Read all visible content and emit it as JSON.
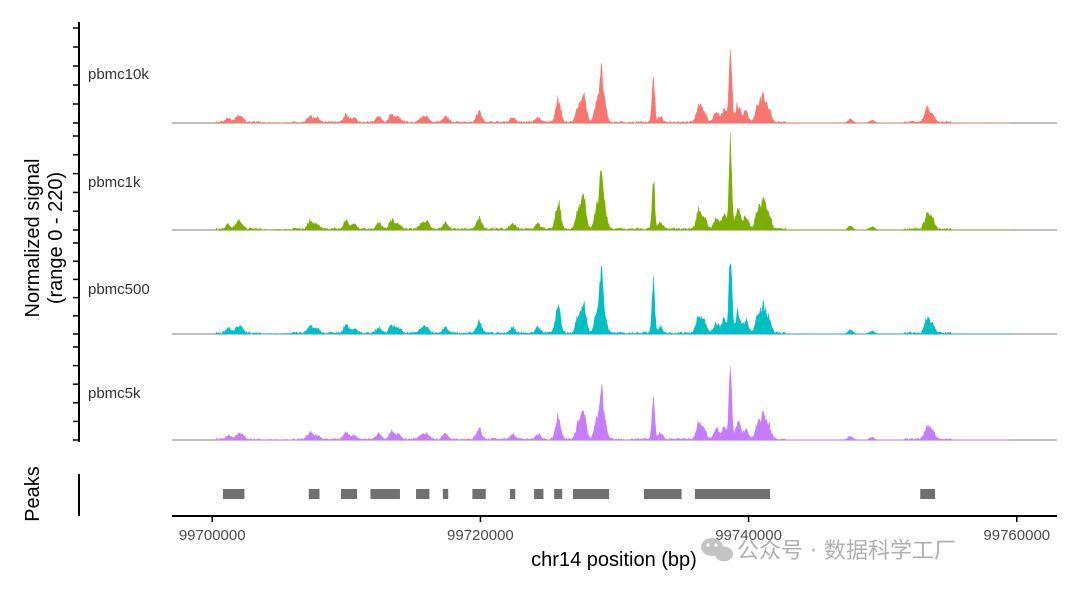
{
  "chart_data": {
    "type": "area",
    "ylabel_line1": "Normalized signal",
    "ylabel_line2": "(range 0 - 220)",
    "xlabel": "chr14 position (bp)",
    "ylim": [
      0,
      220
    ],
    "xlim": [
      99697000,
      99763000
    ],
    "x_ticks": [
      99700000,
      99720000,
      99740000,
      99760000
    ],
    "x_tick_labels": [
      "99700000",
      "99720000",
      "99740000",
      "99760000"
    ],
    "peaks_label": "Peaks",
    "tracks": [
      {
        "name": "pbmc10k",
        "color": "#F8766D",
        "scale": 1.0
      },
      {
        "name": "pbmc1k",
        "color": "#7CAE00",
        "scale": 1.15
      },
      {
        "name": "pbmc500",
        "color": "#00BFC4",
        "scale": 1.12
      },
      {
        "name": "pbmc5k",
        "color": "#C77CFF",
        "scale": 0.98
      }
    ],
    "peak_regions": [
      [
        99700800,
        99702400
      ],
      [
        99707200,
        99708000
      ],
      [
        99709600,
        99710800
      ],
      [
        99711800,
        99714000
      ],
      [
        99715200,
        99716200
      ],
      [
        99717200,
        99717600
      ],
      [
        99719400,
        99720400
      ],
      [
        99722200,
        99722600
      ],
      [
        99724000,
        99724700
      ],
      [
        99725500,
        99726100
      ],
      [
        99726900,
        99729600
      ],
      [
        99732200,
        99735000
      ],
      [
        99736000,
        99741600
      ],
      [
        99752800,
        99753900
      ]
    ],
    "signal_peaks": [
      {
        "x": 99701200,
        "y": 9
      },
      {
        "x": 99701900,
        "y": 12
      },
      {
        "x": 99702200,
        "y": 8
      },
      {
        "x": 99707300,
        "y": 15
      },
      {
        "x": 99707800,
        "y": 10
      },
      {
        "x": 99710000,
        "y": 17
      },
      {
        "x": 99710600,
        "y": 9
      },
      {
        "x": 99712400,
        "y": 12
      },
      {
        "x": 99713400,
        "y": 18
      },
      {
        "x": 99713900,
        "y": 10
      },
      {
        "x": 99715600,
        "y": 9
      },
      {
        "x": 99716000,
        "y": 13
      },
      {
        "x": 99717400,
        "y": 13
      },
      {
        "x": 99719900,
        "y": 22
      },
      {
        "x": 99722400,
        "y": 10
      },
      {
        "x": 99724300,
        "y": 11
      },
      {
        "x": 99725800,
        "y": 50
      },
      {
        "x": 99727300,
        "y": 32
      },
      {
        "x": 99727700,
        "y": 55
      },
      {
        "x": 99728700,
        "y": 45
      },
      {
        "x": 99729000,
        "y": 92
      },
      {
        "x": 99729200,
        "y": 50
      },
      {
        "x": 99732900,
        "y": 98
      },
      {
        "x": 99733400,
        "y": 12
      },
      {
        "x": 99736300,
        "y": 36
      },
      {
        "x": 99736700,
        "y": 20
      },
      {
        "x": 99737600,
        "y": 22
      },
      {
        "x": 99738200,
        "y": 28
      },
      {
        "x": 99738650,
        "y": 176
      },
      {
        "x": 99739200,
        "y": 40
      },
      {
        "x": 99739800,
        "y": 24
      },
      {
        "x": 99740700,
        "y": 36
      },
      {
        "x": 99741100,
        "y": 50
      },
      {
        "x": 99741500,
        "y": 30
      },
      {
        "x": 99747600,
        "y": 8
      },
      {
        "x": 99749200,
        "y": 6
      },
      {
        "x": 99753300,
        "y": 28
      },
      {
        "x": 99753700,
        "y": 18
      }
    ]
  },
  "watermark": "公众号 · 数据科学工厂"
}
